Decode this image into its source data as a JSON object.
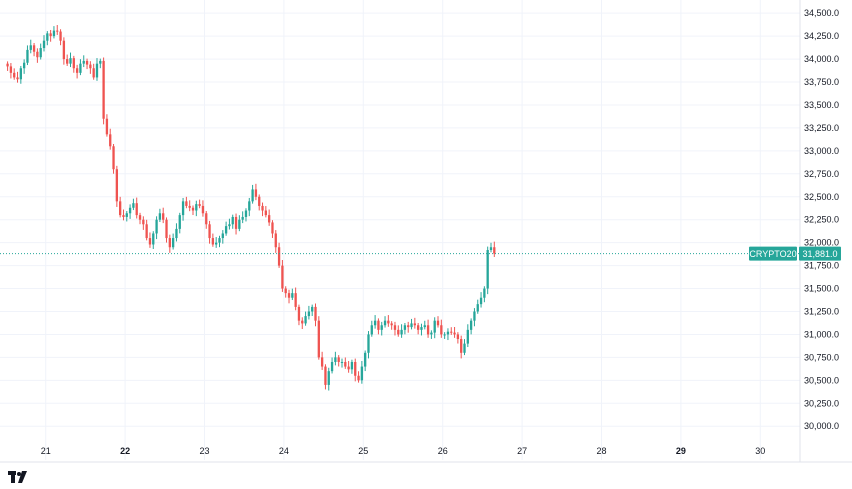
{
  "chart_data": {
    "type": "candlestick",
    "symbol": "CRYPTO20",
    "last_price": 31881.0,
    "last_price_label": "31,881.0",
    "ylim": [
      29850,
      34600
    ],
    "y_ticks": [
      {
        "value": 34500,
        "label": "34,500.0"
      },
      {
        "value": 34250,
        "label": "34,250.0"
      },
      {
        "value": 34000,
        "label": "34,000.0"
      },
      {
        "value": 33750,
        "label": "33,750.0"
      },
      {
        "value": 33500,
        "label": "33,500.0"
      },
      {
        "value": 33250,
        "label": "33,250.0"
      },
      {
        "value": 33000,
        "label": "33,000.0"
      },
      {
        "value": 32750,
        "label": "32,750.0"
      },
      {
        "value": 32500,
        "label": "32,500.0"
      },
      {
        "value": 32250,
        "label": "32,250.0"
      },
      {
        "value": 32000,
        "label": "32,000.0"
      },
      {
        "value": 31750,
        "label": "31,750.0"
      },
      {
        "value": 31500,
        "label": "31,500.0"
      },
      {
        "value": 31250,
        "label": "31,250.0"
      },
      {
        "value": 31000,
        "label": "31,000.0"
      },
      {
        "value": 30750,
        "label": "30,750.0"
      },
      {
        "value": 30500,
        "label": "30,500.0"
      },
      {
        "value": 30250,
        "label": "30,250.0"
      },
      {
        "value": 30000,
        "label": "30,000.0"
      }
    ],
    "xlim": [
      20.5,
      30.5
    ],
    "x_ticks": [
      {
        "value": 21,
        "label": "21",
        "bold": false
      },
      {
        "value": 22,
        "label": "22",
        "bold": true
      },
      {
        "value": 23,
        "label": "23",
        "bold": false
      },
      {
        "value": 24,
        "label": "24",
        "bold": false
      },
      {
        "value": 25,
        "label": "25",
        "bold": false
      },
      {
        "value": 26,
        "label": "26",
        "bold": false
      },
      {
        "value": 27,
        "label": "27",
        "bold": false
      },
      {
        "value": 28,
        "label": "28",
        "bold": false
      },
      {
        "value": 29,
        "label": "29",
        "bold": true
      },
      {
        "value": 30,
        "label": "30",
        "bold": false
      }
    ],
    "grid": true,
    "colors": {
      "up": "#26a69a",
      "down": "#ef5350",
      "grid": "#f0f3fa",
      "text": "#131722",
      "last_line": "#26a69a"
    },
    "candle_step": 0.0417,
    "x_start": 20.52,
    "opens": [
      33950,
      33920,
      33850,
      33800,
      33780,
      33900,
      33960,
      34100,
      34150,
      34080,
      34020,
      34120,
      34200,
      34280,
      34250,
      34310,
      34300,
      34200,
      34000,
      33950,
      34010,
      33900,
      33850,
      33950,
      33980,
      33940,
      33900,
      33800,
      33950,
      33980,
      33350,
      33180,
      33050,
      32800,
      32450,
      32300,
      32280,
      32320,
      32380,
      32430,
      32300,
      32250,
      32200,
      32050,
      31980,
      32100,
      32250,
      32320,
      32250,
      32050,
      31950,
      32050,
      32150,
      32300,
      32450,
      32400,
      32380,
      32350,
      32420,
      32400,
      32320,
      32200,
      32050,
      31980,
      32000,
      32050,
      32100,
      32180,
      32200,
      32280,
      32150,
      32250,
      32280,
      32350,
      32450,
      32580,
      32500,
      32400,
      32350,
      32300,
      32220,
      32100,
      31950,
      31750,
      31500,
      31450,
      31400,
      31450,
      31300,
      31150,
      31120,
      31200,
      31250,
      31300,
      31150,
      30750,
      30650,
      30450,
      30600,
      30700,
      30750,
      30700,
      30700,
      30650,
      30620,
      30700,
      30550,
      30500,
      30650,
      30800,
      31000,
      31100,
      31150,
      31050,
      31100,
      31150,
      31120,
      31100,
      31050,
      31000,
      31050,
      31100,
      31080,
      31120,
      31100,
      31050,
      31080,
      31100,
      31000,
      31020,
      31150,
      31100,
      31000,
      31000,
      31030,
      31020,
      31000,
      30950,
      30800,
      30900,
      31050,
      31150,
      31250,
      31330,
      31400,
      31500,
      31920,
      31950
    ],
    "closes": [
      33920,
      33850,
      33800,
      33780,
      33900,
      33960,
      34100,
      34150,
      34080,
      34020,
      34120,
      34200,
      34280,
      34250,
      34310,
      34300,
      34200,
      34000,
      33950,
      34010,
      33900,
      33850,
      33950,
      33980,
      33940,
      33900,
      33800,
      33950,
      33980,
      33350,
      33180,
      33050,
      32800,
      32450,
      32300,
      32280,
      32320,
      32380,
      32430,
      32300,
      32250,
      32200,
      32050,
      31980,
      32100,
      32250,
      32320,
      32250,
      32050,
      31950,
      32050,
      32150,
      32300,
      32450,
      32400,
      32380,
      32350,
      32420,
      32400,
      32320,
      32200,
      32050,
      31980,
      32000,
      32050,
      32100,
      32180,
      32200,
      32280,
      32150,
      32250,
      32280,
      32350,
      32450,
      32580,
      32500,
      32400,
      32350,
      32300,
      32220,
      32100,
      31950,
      31750,
      31500,
      31450,
      31400,
      31450,
      31300,
      31150,
      31120,
      31200,
      31250,
      31300,
      31150,
      30750,
      30650,
      30450,
      30600,
      30700,
      30750,
      30700,
      30700,
      30650,
      30620,
      30700,
      30550,
      30500,
      30650,
      30800,
      31000,
      31100,
      31150,
      31050,
      31100,
      31150,
      31120,
      31100,
      31050,
      31000,
      31050,
      31100,
      31080,
      31120,
      31100,
      31050,
      31080,
      31100,
      31000,
      31020,
      31150,
      31100,
      31000,
      31000,
      31030,
      31020,
      31000,
      30950,
      30800,
      30900,
      31050,
      31150,
      31250,
      31330,
      31400,
      31500,
      31920,
      31950,
      31881
    ]
  }
}
